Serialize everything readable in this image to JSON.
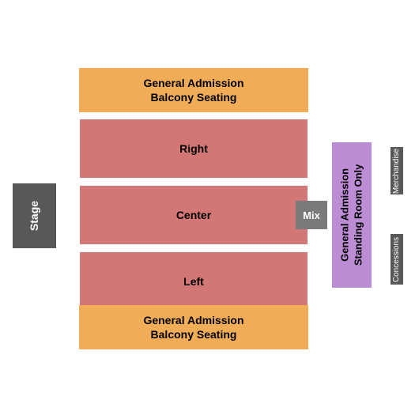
{
  "chart": {
    "type": "seating-map",
    "background_color": "#ffffff",
    "sections": {
      "balcony_top": {
        "label": "General Admission\nBalcony Seating",
        "fill": "#f0ac57",
        "text_color": "#000000"
      },
      "balcony_bottom": {
        "label": "General Admission\nBalcony Seating",
        "fill": "#f0ac57",
        "text_color": "#000000"
      },
      "stage": {
        "label": "Stage",
        "fill": "#585858",
        "text_color": "#ffffff"
      },
      "right": {
        "label": "Right",
        "fill": "#d27775",
        "text_color": "#000000"
      },
      "center": {
        "label": "Center",
        "fill": "#d27775",
        "text_color": "#000000"
      },
      "left": {
        "label": "Left",
        "fill": "#d27775",
        "text_color": "#000000"
      },
      "mix": {
        "label": "Mix",
        "fill": "#7a7a7a",
        "text_color": "#ffffff"
      },
      "standing": {
        "label": "General Admission\nStanding Room Only",
        "fill": "#bc8cd4",
        "text_color": "#000000"
      },
      "merchandise": {
        "label": "Merchandise",
        "fill": "#585858",
        "text_color": "#ffffff"
      },
      "concessions": {
        "label": "Concessions",
        "fill": "#585858",
        "text_color": "#ffffff"
      }
    },
    "fonts": {
      "section_label_size": 14,
      "side_label_size": 10,
      "weight": "bold",
      "family": "Arial, sans-serif"
    }
  }
}
